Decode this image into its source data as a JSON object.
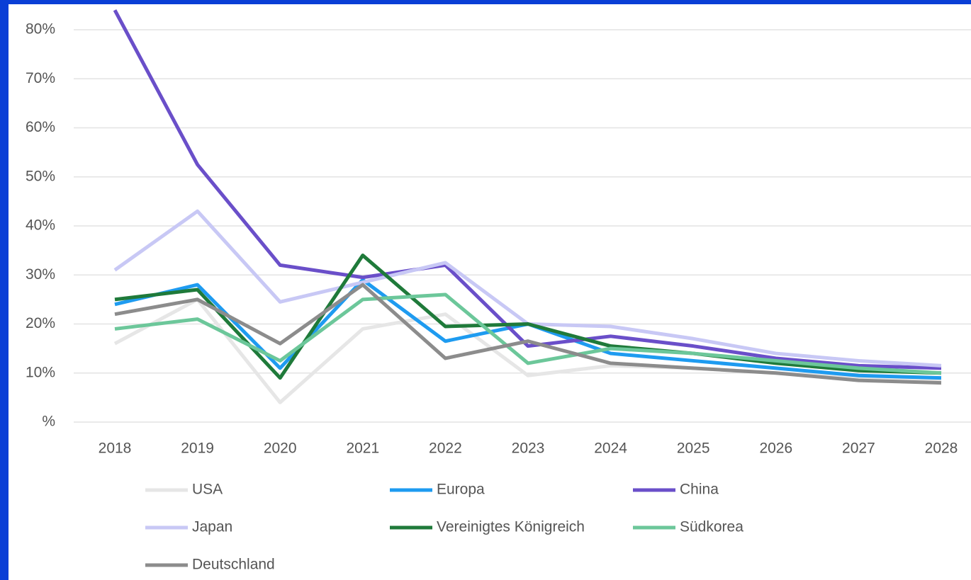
{
  "chart_data": {
    "type": "line",
    "categories": [
      "2018",
      "2019",
      "2020",
      "2021",
      "2022",
      "2023",
      "2024",
      "2025",
      "2026",
      "2027",
      "2028"
    ],
    "series": [
      {
        "name": "USA",
        "color": "#e6e6e6",
        "values": [
          16,
          25,
          4,
          19,
          22,
          9.5,
          11.5,
          11,
          10,
          9,
          8.5
        ]
      },
      {
        "name": "Europa",
        "color": "#1e9bf0",
        "values": [
          24,
          28,
          11,
          29,
          16.5,
          20,
          14,
          12.5,
          11,
          9.5,
          9
        ]
      },
      {
        "name": "China",
        "color": "#6a4fc9",
        "values": [
          84,
          52.5,
          32,
          29.5,
          32,
          15.5,
          17.5,
          15.5,
          13,
          11.5,
          11
        ]
      },
      {
        "name": "Japan",
        "color": "#c8c8f5",
        "values": [
          31,
          43,
          24.5,
          28.5,
          32.5,
          20,
          19.5,
          17,
          14,
          12.5,
          11.5
        ]
      },
      {
        "name": "Vereinigtes Königreich",
        "color": "#1f7a3a",
        "values": [
          25,
          27,
          9,
          34,
          19.5,
          20,
          15.5,
          14,
          12,
          10.5,
          10
        ]
      },
      {
        "name": "Südkorea",
        "color": "#6cc79a",
        "values": [
          19,
          21,
          12.5,
          25,
          26,
          12,
          15,
          14,
          12.5,
          11,
          10
        ]
      },
      {
        "name": "Deutschland",
        "color": "#8c8c8c",
        "values": [
          22,
          25,
          16,
          28,
          13,
          16.5,
          12,
          11,
          10,
          8.5,
          8
        ]
      }
    ],
    "ylim": [
      0,
      85
    ],
    "yticks": [
      {
        "value": 0,
        "label": "%"
      },
      {
        "value": 10,
        "label": "10%"
      },
      {
        "value": 20,
        "label": "20%"
      },
      {
        "value": 30,
        "label": "30%"
      },
      {
        "value": 40,
        "label": "40%"
      },
      {
        "value": 50,
        "label": "50%"
      },
      {
        "value": 60,
        "label": "60%"
      },
      {
        "value": 70,
        "label": "70%"
      },
      {
        "value": 80,
        "label": "80%"
      }
    ],
    "grid": true
  }
}
